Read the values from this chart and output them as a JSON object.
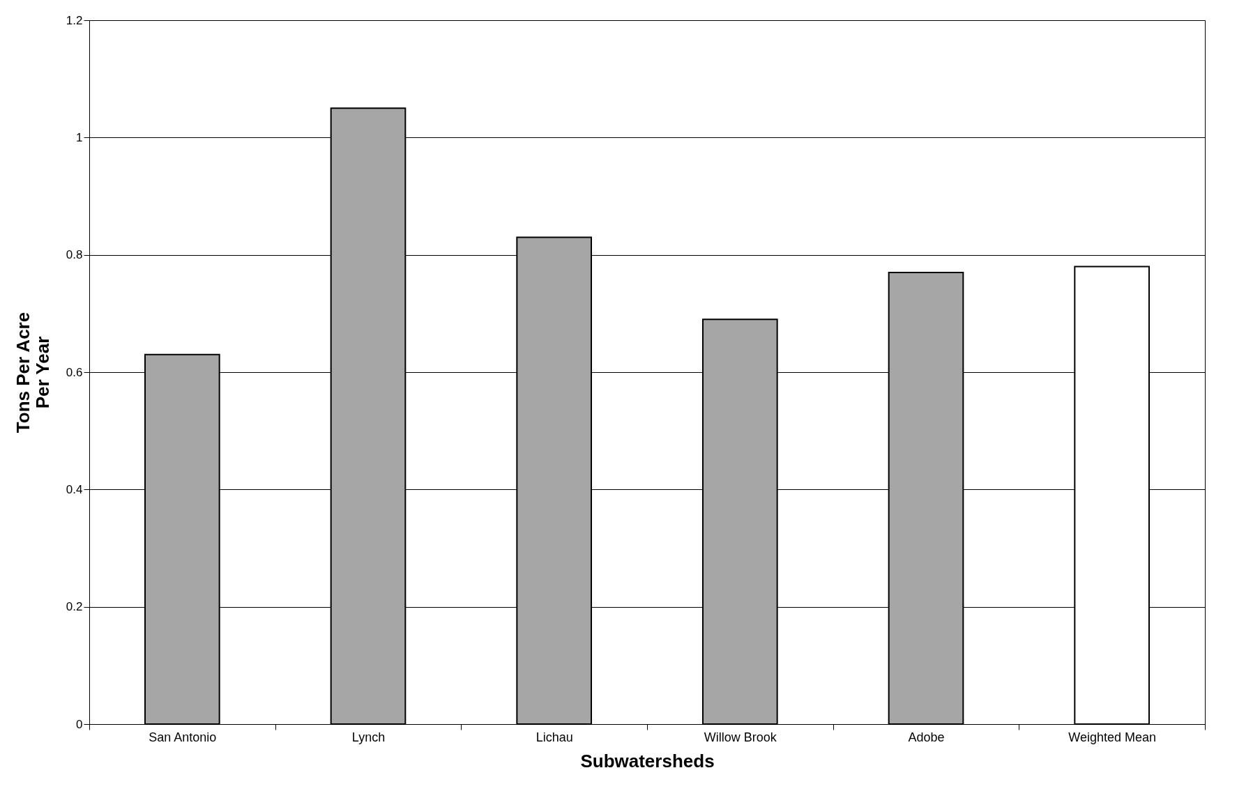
{
  "chart_data": {
    "type": "bar",
    "xlabel": "Subwatersheds",
    "ylabel": "Tons Per Acre\nPer Year",
    "categories": [
      "San Antonio",
      "Lynch",
      "Lichau",
      "Willow Brook",
      "Adobe",
      "Weighted Mean"
    ],
    "values": [
      0.63,
      1.05,
      0.83,
      0.69,
      0.77,
      0.78
    ],
    "colors": [
      "#a6a6a6",
      "#a6a6a6",
      "#a6a6a6",
      "#a6a6a6",
      "#a6a6a6",
      "#ffffff"
    ],
    "ylim": [
      0,
      1.2
    ],
    "yticks": [
      0,
      0.2,
      0.4,
      0.6,
      0.8,
      1,
      1.2
    ],
    "grid": "y"
  }
}
